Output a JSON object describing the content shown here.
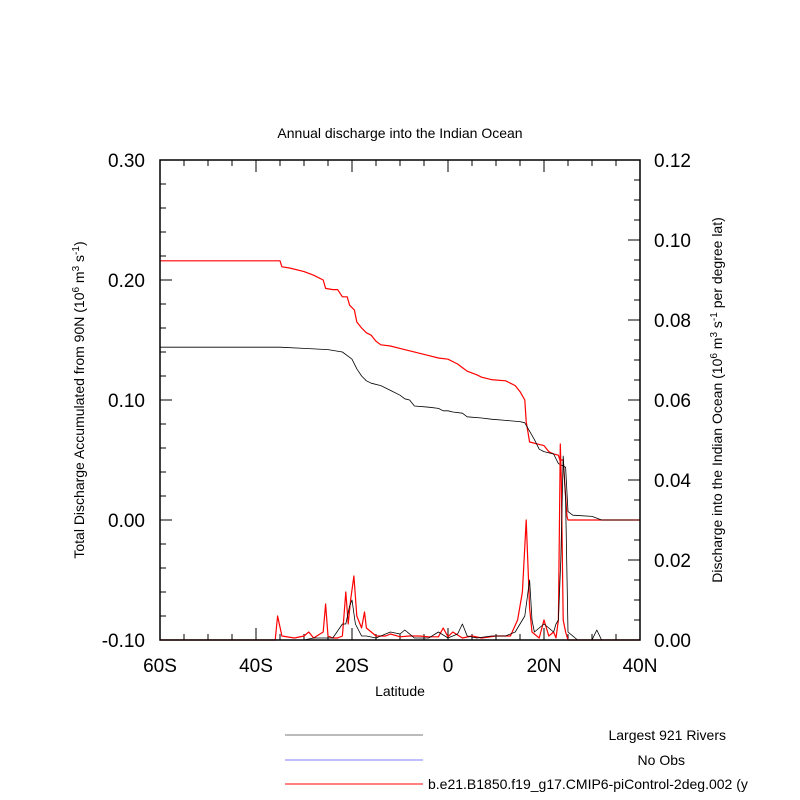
{
  "chart_data": {
    "type": "line",
    "title": "Annual discharge into the Indian Ocean",
    "xlabel": "Latitude",
    "x_range": [
      -60,
      40
    ],
    "x_ticks": [
      {
        "value": -60,
        "label": "60S"
      },
      {
        "value": -40,
        "label": "40S"
      },
      {
        "value": -20,
        "label": "20S"
      },
      {
        "value": 0,
        "label": "0"
      },
      {
        "value": 20,
        "label": "20N"
      },
      {
        "value": 40,
        "label": "40N"
      }
    ],
    "left_axis": {
      "label_parts": [
        "Total Discharge Accumulated from 90N (10",
        "6",
        " m",
        "3",
        " s",
        "-1",
        ")"
      ],
      "ylim": [
        -0.1,
        0.3
      ],
      "ticks": [
        {
          "value": -0.1,
          "label": "-0.10"
        },
        {
          "value": 0.0,
          "label": "0.00"
        },
        {
          "value": 0.1,
          "label": "0.10"
        },
        {
          "value": 0.2,
          "label": "0.20"
        },
        {
          "value": 0.3,
          "label": "0.30"
        }
      ]
    },
    "right_axis": {
      "label_parts": [
        "Discharge into the Indian Ocean (10",
        "6",
        " m",
        "3",
        " s",
        "-1",
        " per degree lat)"
      ],
      "ylim": [
        0.0,
        0.12
      ],
      "ticks": [
        {
          "value": 0.0,
          "label": "0.00"
        },
        {
          "value": 0.02,
          "label": "0.02"
        },
        {
          "value": 0.04,
          "label": "0.04"
        },
        {
          "value": 0.06,
          "label": "0.06"
        },
        {
          "value": 0.08,
          "label": "0.08"
        },
        {
          "value": 0.1,
          "label": "0.10"
        },
        {
          "value": 0.12,
          "label": "0.12"
        }
      ]
    },
    "legend": {
      "placement": "bottom",
      "entries": [
        {
          "label": "Largest 921 Rivers",
          "color": "#777777"
        },
        {
          "label": "No Obs",
          "color": "#7f7fff"
        },
        {
          "label": "b.e21.B1850.f19_g17.CMIP6-piControl-2deg.002 (y",
          "color": "#ff0000"
        }
      ]
    },
    "series": [
      {
        "axis": "left",
        "color": "#ff0000",
        "points": [
          [
            -60,
            0.216
          ],
          [
            -50,
            0.216
          ],
          [
            -45,
            0.216
          ],
          [
            -40,
            0.216
          ],
          [
            -35,
            0.216
          ],
          [
            -34.6,
            0.211
          ],
          [
            -33,
            0.21
          ],
          [
            -30,
            0.207
          ],
          [
            -28,
            0.204
          ],
          [
            -26,
            0.2
          ],
          [
            -25.5,
            0.193
          ],
          [
            -24,
            0.192
          ],
          [
            -23,
            0.192
          ],
          [
            -22,
            0.186
          ],
          [
            -21,
            0.186
          ],
          [
            -20.5,
            0.179
          ],
          [
            -19.5,
            0.175
          ],
          [
            -19,
            0.165
          ],
          [
            -18,
            0.16
          ],
          [
            -17,
            0.156
          ],
          [
            -16,
            0.154
          ],
          [
            -15,
            0.149
          ],
          [
            -14,
            0.146
          ],
          [
            -12,
            0.145
          ],
          [
            -10,
            0.143
          ],
          [
            -8,
            0.141
          ],
          [
            -6,
            0.139
          ],
          [
            -4,
            0.137
          ],
          [
            -2,
            0.135
          ],
          [
            0,
            0.134
          ],
          [
            1,
            0.132
          ],
          [
            2,
            0.13
          ],
          [
            3,
            0.127
          ],
          [
            4,
            0.124
          ],
          [
            6,
            0.121
          ],
          [
            7,
            0.119
          ],
          [
            9,
            0.117
          ],
          [
            12,
            0.116
          ],
          [
            13,
            0.114
          ],
          [
            14,
            0.112
          ],
          [
            15,
            0.107
          ],
          [
            16,
            0.1
          ],
          [
            16.3,
            0.082
          ],
          [
            17,
            0.065
          ],
          [
            19,
            0.063
          ],
          [
            20,
            0.062
          ],
          [
            21,
            0.057
          ],
          [
            22,
            0.055
          ],
          [
            23,
            0.054
          ],
          [
            23.3,
            0.05
          ],
          [
            24,
            0.05
          ],
          [
            24.8,
            0.003
          ],
          [
            25,
            0.0
          ],
          [
            26,
            0.0
          ],
          [
            30,
            0.0
          ],
          [
            35,
            0.0
          ],
          [
            40,
            0.0
          ]
        ]
      },
      {
        "axis": "left",
        "color": "#000000",
        "points": [
          [
            -60,
            0.144
          ],
          [
            -45,
            0.144
          ],
          [
            -40,
            0.144
          ],
          [
            -35,
            0.144
          ],
          [
            -30,
            0.143
          ],
          [
            -25,
            0.142
          ],
          [
            -22,
            0.14
          ],
          [
            -21,
            0.137
          ],
          [
            -20,
            0.134
          ],
          [
            -19,
            0.126
          ],
          [
            -18,
            0.12
          ],
          [
            -17,
            0.116
          ],
          [
            -16,
            0.114
          ],
          [
            -14,
            0.112
          ],
          [
            -12,
            0.108
          ],
          [
            -10,
            0.104
          ],
          [
            -9,
            0.101
          ],
          [
            -8,
            0.1
          ],
          [
            -7,
            0.095
          ],
          [
            -4,
            0.094
          ],
          [
            -2,
            0.093
          ],
          [
            -1,
            0.091
          ],
          [
            0,
            0.091
          ],
          [
            1,
            0.09
          ],
          [
            3,
            0.089
          ],
          [
            4,
            0.086
          ],
          [
            7,
            0.085
          ],
          [
            9,
            0.084
          ],
          [
            12,
            0.083
          ],
          [
            15,
            0.082
          ],
          [
            16,
            0.081
          ],
          [
            17,
            0.074
          ],
          [
            18,
            0.067
          ],
          [
            19,
            0.059
          ],
          [
            20,
            0.057
          ],
          [
            22,
            0.055
          ],
          [
            23,
            0.047
          ],
          [
            24,
            0.045
          ],
          [
            24.5,
            0.044
          ],
          [
            25,
            0.007
          ],
          [
            26,
            0.004
          ],
          [
            30,
            0.003
          ],
          [
            32,
            0.0
          ],
          [
            35,
            0.0
          ],
          [
            40,
            0.0
          ]
        ]
      },
      {
        "axis": "right",
        "color": "#ff0000",
        "points": [
          [
            -60,
            0.0
          ],
          [
            -36,
            0.0
          ],
          [
            -35.5,
            0.006
          ],
          [
            -34.6,
            0.001
          ],
          [
            -32,
            0.0005
          ],
          [
            -30,
            0.001
          ],
          [
            -29,
            0.002
          ],
          [
            -28,
            0.0005
          ],
          [
            -26,
            0.002
          ],
          [
            -25.5,
            0.009
          ],
          [
            -25,
            0.001
          ],
          [
            -24,
            0.0005
          ],
          [
            -23,
            0.0005
          ],
          [
            -22,
            0.001
          ],
          [
            -21.3,
            0.012
          ],
          [
            -20.8,
            0.004
          ],
          [
            -20.3,
            0.01
          ],
          [
            -19.6,
            0.016
          ],
          [
            -19,
            0.006
          ],
          [
            -18,
            0.003
          ],
          [
            -17.4,
            0.007
          ],
          [
            -17,
            0.003
          ],
          [
            -15,
            0.001
          ],
          [
            -13,
            0.001
          ],
          [
            -12,
            0.0015
          ],
          [
            -10,
            0.0008
          ],
          [
            -8,
            0.001
          ],
          [
            -6,
            0.001
          ],
          [
            -4,
            0.0008
          ],
          [
            -2,
            0.0008
          ],
          [
            -1,
            0.003
          ],
          [
            0,
            0.0008
          ],
          [
            1,
            0.002
          ],
          [
            3,
            0.0005
          ],
          [
            5,
            0.001
          ],
          [
            7,
            0.0005
          ],
          [
            10,
            0.001
          ],
          [
            13,
            0.001
          ],
          [
            14.5,
            0.005
          ],
          [
            15.5,
            0.012
          ],
          [
            16.3,
            0.03
          ],
          [
            17,
            0.008
          ],
          [
            17.5,
            0.002
          ],
          [
            19,
            0.0005
          ],
          [
            20,
            0.005
          ],
          [
            21,
            0.001
          ],
          [
            22,
            0.002
          ],
          [
            22.5,
            0.0005
          ],
          [
            23,
            0.005
          ],
          [
            23.4,
            0.049
          ],
          [
            23.6,
            0.04
          ],
          [
            24,
            0.005
          ],
          [
            24.5,
            0.002
          ],
          [
            25,
            0.0
          ],
          [
            27,
            0.0
          ],
          [
            40,
            0.0
          ]
        ]
      },
      {
        "axis": "right",
        "color": "#000000",
        "points": [
          [
            -60,
            0.0
          ],
          [
            -36,
            0.0
          ],
          [
            -30,
            0.0
          ],
          [
            -28,
            0.0005
          ],
          [
            -26,
            0.0005
          ],
          [
            -24,
            0.0005
          ],
          [
            -22,
            0.004
          ],
          [
            -21.3,
            0.004
          ],
          [
            -20.5,
            0.0085
          ],
          [
            -20,
            0.01
          ],
          [
            -19.3,
            0.004
          ],
          [
            -18,
            0.001
          ],
          [
            -17,
            0.001
          ],
          [
            -15,
            0.0005
          ],
          [
            -12,
            0.002
          ],
          [
            -10,
            0.0015
          ],
          [
            -9,
            0.0025
          ],
          [
            -7,
            0.0005
          ],
          [
            -4,
            0.0005
          ],
          [
            -2,
            0.002
          ],
          [
            0,
            0.0005
          ],
          [
            2,
            0.0015
          ],
          [
            3,
            0.004
          ],
          [
            4,
            0.001
          ],
          [
            6,
            0.0005
          ],
          [
            9,
            0.001
          ],
          [
            12,
            0.001
          ],
          [
            14,
            0.002
          ],
          [
            15,
            0.004
          ],
          [
            16,
            0.006
          ],
          [
            17,
            0.015
          ],
          [
            17.5,
            0.005
          ],
          [
            18,
            0.002
          ],
          [
            19,
            0.003
          ],
          [
            20,
            0.004
          ],
          [
            21,
            0.003
          ],
          [
            22,
            0.002
          ],
          [
            22.5,
            0.004
          ],
          [
            23,
            0.005
          ],
          [
            23.5,
            0.02
          ],
          [
            24,
            0.046
          ],
          [
            24.5,
            0.035
          ],
          [
            25,
            0.002
          ],
          [
            27,
            0.0
          ],
          [
            30,
            0.0
          ],
          [
            31,
            0.0025
          ],
          [
            32,
            0.0
          ],
          [
            40,
            0.0
          ]
        ]
      }
    ]
  }
}
